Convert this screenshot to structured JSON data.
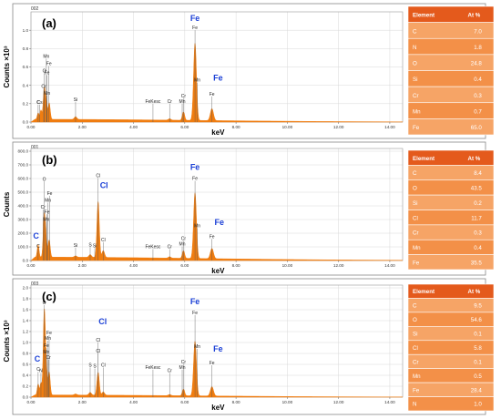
{
  "figure": {
    "background": "#ffffff"
  },
  "colors": {
    "spectrum": "#f07d10",
    "fe_label": "#1a3fd6",
    "table_head": "#e45a1c",
    "table_row_a": "#f6a466",
    "table_row_b": "#f39048",
    "table_border": "#ffffff",
    "frame": "#888888",
    "grid": "#d8d8d8"
  },
  "chart_data": [
    {
      "type": "line",
      "panel_id": "002",
      "panel_label": "(a)",
      "ylabel": "Counts ×10³",
      "xlabel": "keV",
      "xlim": [
        0,
        14.5
      ],
      "ylim": [
        0,
        1.2
      ],
      "yticks": [
        "0.0",
        "0.2",
        "0.4",
        "0.6",
        "0.8",
        "1.0"
      ],
      "ytick_values": [
        0,
        0.2,
        0.4,
        0.6,
        0.8,
        1.0
      ],
      "xticks": [
        "0.00",
        "2.00",
        "4.00",
        "6.00",
        "8.00",
        "10.00",
        "12.00",
        "14.00"
      ],
      "xtick_values": [
        0,
        2,
        4,
        6,
        8,
        10,
        12,
        14
      ],
      "baseline": 0.03,
      "grid": true,
      "peaks": [
        {
          "x": 0.28,
          "h": 0.07,
          "w": 0.035
        },
        {
          "x": 0.39,
          "h": 0.1,
          "w": 0.035
        },
        {
          "x": 0.52,
          "h": 0.34,
          "w": 0.04
        },
        {
          "x": 0.6,
          "h": 0.16,
          "w": 0.035
        },
        {
          "x": 0.71,
          "h": 0.18,
          "w": 0.04
        },
        {
          "x": 1.74,
          "h": 0.03,
          "w": 0.05
        },
        {
          "x": 5.41,
          "h": 0.015,
          "w": 0.05
        },
        {
          "x": 5.95,
          "h": 0.09,
          "w": 0.045
        },
        {
          "x": 6.4,
          "h": 0.84,
          "w": 0.055
        },
        {
          "x": 7.06,
          "h": 0.13,
          "w": 0.06
        }
      ],
      "line_labels": [
        {
          "text": "C",
          "x": 0.28,
          "y": 0.2
        },
        {
          "text": "Cs",
          "x": 0.34,
          "y": 0.2
        },
        {
          "text": "Cr",
          "x": 0.5,
          "y": 0.37
        },
        {
          "text": "O",
          "x": 0.52,
          "y": 0.54
        },
        {
          "text": "Mn",
          "x": 0.6,
          "y": 0.7
        },
        {
          "text": "Fe",
          "x": 0.7,
          "y": 0.62
        },
        {
          "text": "Fe",
          "x": 0.62,
          "y": 0.52
        },
        {
          "text": "Mn",
          "x": 0.63,
          "y": 0.3
        },
        {
          "text": "Si",
          "x": 1.74,
          "y": 0.23
        },
        {
          "text": "FeKesc",
          "x": 4.76,
          "y": 0.21
        },
        {
          "text": "Cr",
          "x": 5.41,
          "y": 0.21
        },
        {
          "text": "Cr",
          "x": 5.95,
          "y": 0.27
        },
        {
          "text": "Mn",
          "x": 5.9,
          "y": 0.21
        },
        {
          "text": "Fe",
          "x": 6.4,
          "y": 1.01
        },
        {
          "text": "Mn",
          "x": 6.49,
          "y": 0.44
        },
        {
          "text": "Fe",
          "x": 7.06,
          "y": 0.29
        }
      ],
      "callouts": [
        {
          "text": "Fe",
          "x": 6.4,
          "y": 1.1
        },
        {
          "text": "Fe",
          "x": 7.3,
          "y": 0.45
        }
      ],
      "table": {
        "headers": [
          "Element",
          "At %"
        ],
        "rows": [
          [
            "C",
            "7.0"
          ],
          [
            "N",
            "1.8"
          ],
          [
            "O",
            "24.8"
          ],
          [
            "Si",
            "0.4"
          ],
          [
            "Cr",
            "0.3"
          ],
          [
            "Mn",
            "0.7"
          ],
          [
            "Fe",
            "65.0"
          ]
        ]
      }
    },
    {
      "type": "line",
      "panel_id": "001",
      "panel_label": "(b)",
      "ylabel": "Counts",
      "xlabel": "keV",
      "xlim": [
        0,
        14.5
      ],
      "ylim": [
        0,
        820
      ],
      "yticks": [
        "0.0",
        "100.0",
        "200.0",
        "300.0",
        "400.0",
        "500.0",
        "600.0",
        "700.0",
        "800.0"
      ],
      "ytick_values": [
        0,
        100,
        200,
        300,
        400,
        500,
        600,
        700,
        800
      ],
      "xticks": [
        "0.00",
        "2.00",
        "4.00",
        "6.00",
        "8.00",
        "10.00",
        "12.00",
        "14.00"
      ],
      "xtick_values": [
        0,
        2,
        4,
        6,
        8,
        10,
        12,
        14
      ],
      "baseline": 25,
      "grid": true,
      "peaks": [
        {
          "x": 0.28,
          "h": 90,
          "w": 0.035
        },
        {
          "x": 0.52,
          "h": 320,
          "w": 0.04
        },
        {
          "x": 0.6,
          "h": 100,
          "w": 0.035
        },
        {
          "x": 0.71,
          "h": 125,
          "w": 0.04
        },
        {
          "x": 1.74,
          "h": 10,
          "w": 0.05
        },
        {
          "x": 2.31,
          "h": 20,
          "w": 0.05
        },
        {
          "x": 2.62,
          "h": 410,
          "w": 0.045
        },
        {
          "x": 2.82,
          "h": 50,
          "w": 0.05
        },
        {
          "x": 5.41,
          "h": 10,
          "w": 0.05
        },
        {
          "x": 5.95,
          "h": 55,
          "w": 0.045
        },
        {
          "x": 6.4,
          "h": 480,
          "w": 0.055
        },
        {
          "x": 7.06,
          "h": 75,
          "w": 0.06
        }
      ],
      "line_labels": [
        {
          "text": "C",
          "x": 0.28,
          "y": 95
        },
        {
          "text": "Cr",
          "x": 0.47,
          "y": 380
        },
        {
          "text": "O",
          "x": 0.52,
          "y": 585
        },
        {
          "text": "Mn",
          "x": 0.66,
          "y": 430
        },
        {
          "text": "Fe",
          "x": 0.73,
          "y": 480
        },
        {
          "text": "Fe",
          "x": 0.62,
          "y": 345
        },
        {
          "text": "Mn",
          "x": 0.6,
          "y": 290
        },
        {
          "text": "Si",
          "x": 1.74,
          "y": 100
        },
        {
          "text": "S",
          "x": 2.31,
          "y": 105
        },
        {
          "text": "Si",
          "x": 2.49,
          "y": 98
        },
        {
          "text": "Cl",
          "x": 2.62,
          "y": 610
        },
        {
          "text": "Cl",
          "x": 2.82,
          "y": 140
        },
        {
          "text": "FeKesc",
          "x": 4.76,
          "y": 90
        },
        {
          "text": "Cr",
          "x": 5.41,
          "y": 90
        },
        {
          "text": "Cr",
          "x": 5.95,
          "y": 150
        },
        {
          "text": "Mn",
          "x": 5.9,
          "y": 110
        },
        {
          "text": "Fe",
          "x": 6.4,
          "y": 590
        },
        {
          "text": "Mn",
          "x": 6.49,
          "y": 245
        },
        {
          "text": "Fe",
          "x": 7.06,
          "y": 165
        }
      ],
      "callouts": [
        {
          "text": "C",
          "x": 0.2,
          "y": 160
        },
        {
          "text": "Cl",
          "x": 2.85,
          "y": 530
        },
        {
          "text": "Fe",
          "x": 6.4,
          "y": 665
        },
        {
          "text": "Fe",
          "x": 7.35,
          "y": 260
        }
      ],
      "table": {
        "headers": [
          "Element",
          "At %"
        ],
        "rows": [
          [
            "C",
            "8.4"
          ],
          [
            "O",
            "43.5"
          ],
          [
            "Si",
            "0.2"
          ],
          [
            "Cl",
            "11.7"
          ],
          [
            "Cr",
            "0.3"
          ],
          [
            "Mn",
            "0.4"
          ],
          [
            "Fe",
            "35.5"
          ]
        ]
      }
    },
    {
      "type": "line",
      "panel_id": "003",
      "panel_label": "(c)",
      "ylabel": "Counts ×10³",
      "xlabel": "keV",
      "xlim": [
        0,
        14.5
      ],
      "ylim": [
        0,
        2.05
      ],
      "yticks": [
        "0.0",
        "0.2",
        "0.4",
        "0.6",
        "0.8",
        "1.0",
        "1.2",
        "1.4",
        "1.6",
        "1.8",
        "2.0"
      ],
      "ytick_values": [
        0,
        0.2,
        0.4,
        0.6,
        0.8,
        1.0,
        1.2,
        1.4,
        1.6,
        1.8,
        2.0
      ],
      "xticks": [
        "0.00",
        "2.00",
        "4.00",
        "6.00",
        "8.00",
        "10.00",
        "12.00",
        "14.00"
      ],
      "xtick_values": [
        0,
        2,
        4,
        6,
        8,
        10,
        12,
        14
      ],
      "baseline": 0.04,
      "grid": true,
      "peaks": [
        {
          "x": 0.28,
          "h": 0.2,
          "w": 0.035
        },
        {
          "x": 0.39,
          "h": 0.22,
          "w": 0.035
        },
        {
          "x": 0.52,
          "h": 1.55,
          "w": 0.04
        },
        {
          "x": 0.6,
          "h": 0.45,
          "w": 0.035
        },
        {
          "x": 0.71,
          "h": 0.42,
          "w": 0.04
        },
        {
          "x": 1.74,
          "h": 0.02,
          "w": 0.05
        },
        {
          "x": 2.31,
          "h": 0.05,
          "w": 0.05
        },
        {
          "x": 2.62,
          "h": 0.42,
          "w": 0.045
        },
        {
          "x": 2.82,
          "h": 0.06,
          "w": 0.05
        },
        {
          "x": 5.41,
          "h": 0.02,
          "w": 0.05
        },
        {
          "x": 5.95,
          "h": 0.12,
          "w": 0.045
        },
        {
          "x": 6.4,
          "h": 1.0,
          "w": 0.055
        },
        {
          "x": 7.06,
          "h": 0.17,
          "w": 0.06
        }
      ],
      "line_labels": [
        {
          "text": "C",
          "x": 0.28,
          "y": 0.48
        },
        {
          "text": "N",
          "x": 0.39,
          "y": 0.46
        },
        {
          "text": "O",
          "x": 0.52,
          "y": 1.7
        },
        {
          "text": "Fe",
          "x": 0.71,
          "y": 1.15
        },
        {
          "text": "Mn",
          "x": 0.66,
          "y": 1.05
        },
        {
          "text": "Fe",
          "x": 0.6,
          "y": 0.92
        },
        {
          "text": "Mn",
          "x": 0.6,
          "y": 0.8
        },
        {
          "text": "Cr",
          "x": 0.68,
          "y": 0.7
        },
        {
          "text": "S",
          "x": 2.31,
          "y": 0.56
        },
        {
          "text": "S",
          "x": 2.49,
          "y": 0.54
        },
        {
          "text": "Cl",
          "x": 2.82,
          "y": 0.56
        },
        {
          "text": "Cl",
          "x": 2.62,
          "y": 1.02
        },
        {
          "text": "Cl",
          "x": 2.62,
          "y": 0.82
        },
        {
          "text": "FeKesc",
          "x": 4.76,
          "y": 0.52
        },
        {
          "text": "Cr",
          "x": 5.41,
          "y": 0.46
        },
        {
          "text": "Cr",
          "x": 5.95,
          "y": 0.62
        },
        {
          "text": "Mn",
          "x": 5.9,
          "y": 0.52
        },
        {
          "text": "Fe",
          "x": 6.4,
          "y": 1.52
        },
        {
          "text": "Mn",
          "x": 6.49,
          "y": 0.9
        },
        {
          "text": "Fe",
          "x": 7.06,
          "y": 0.6
        }
      ],
      "callouts": [
        {
          "text": "C",
          "x": 0.25,
          "y": 0.65
        },
        {
          "text": "Cl",
          "x": 2.8,
          "y": 1.33
        },
        {
          "text": "Fe",
          "x": 6.4,
          "y": 1.7
        },
        {
          "text": "Fe",
          "x": 7.3,
          "y": 0.83
        }
      ],
      "table": {
        "headers": [
          "Element",
          "At %"
        ],
        "rows": [
          [
            "C",
            "9.5"
          ],
          [
            "O",
            "54.6"
          ],
          [
            "Si",
            "0.1"
          ],
          [
            "Cl",
            "5.8"
          ],
          [
            "Cr",
            "0.1"
          ],
          [
            "Mn",
            "0.5"
          ],
          [
            "Fe",
            "28.4"
          ],
          [
            "N",
            "1.0"
          ]
        ]
      }
    }
  ]
}
